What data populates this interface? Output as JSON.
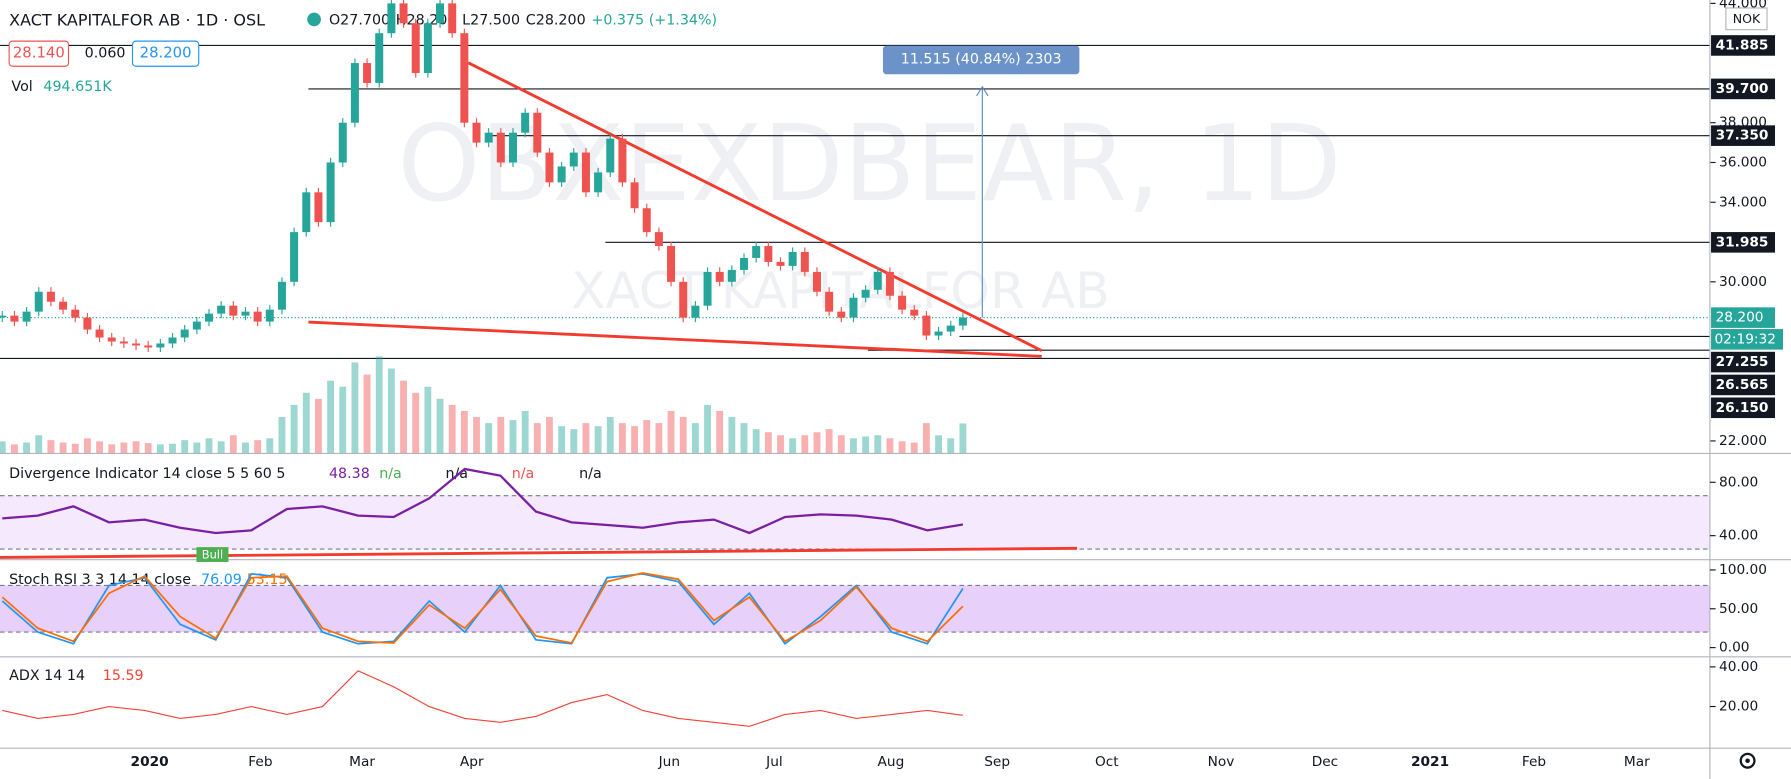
{
  "header": {
    "symbol": "XACT KAPITALFOR AB · 1D · OSL",
    "open": "O27.700",
    "high": "H28.200",
    "low": "L27.500",
    "close": "C28.200",
    "change": "+0.375 (+1.34%)",
    "bid": "28.140",
    "spread": "0.060",
    "ask": "28.200",
    "volume_label": "Vol",
    "volume": "494.651K"
  },
  "watermark": {
    "line1": "OBXEXDBEAR, 1D",
    "line2": "XACT KAPITALFOR AB"
  },
  "currency": "NOK",
  "countdown": "02:19:32",
  "measure": "11.515 (40.84%) 2303",
  "chart_data": {
    "type": "candlestick",
    "closes": [
      28.3,
      28.0,
      28.5,
      29.5,
      29.0,
      28.6,
      28.2,
      27.6,
      27.2,
      27.0,
      26.9,
      26.8,
      26.7,
      26.9,
      27.2,
      27.6,
      28.0,
      28.4,
      28.8,
      28.3,
      28.5,
      28.0,
      28.6,
      30.0,
      32.5,
      34.5,
      33.0,
      36.0,
      38.0,
      41.0,
      40.0,
      42.5,
      44.0,
      43.0,
      40.5,
      43.0,
      44.0,
      42.5,
      38.0,
      37.0,
      37.5,
      36.0,
      37.5,
      38.5,
      36.5,
      35.0,
      35.8,
      36.5,
      34.5,
      35.5,
      37.2,
      35.0,
      33.7,
      32.5,
      31.8,
      30.0,
      28.2,
      28.8,
      30.5,
      30.0,
      30.6,
      31.2,
      31.8,
      31.0,
      30.8,
      31.5,
      30.5,
      29.5,
      28.5,
      28.2,
      29.2,
      29.6,
      30.5,
      29.3,
      28.6,
      28.3,
      27.3,
      27.5,
      27.8,
      28.2
    ],
    "volumes": [
      200,
      150,
      180,
      300,
      220,
      180,
      160,
      250,
      200,
      150,
      180,
      200,
      170,
      150,
      160,
      220,
      180,
      250,
      200,
      300,
      180,
      220,
      250,
      600,
      800,
      1000,
      900,
      1200,
      1100,
      1500,
      1300,
      1600,
      1400,
      1200,
      1000,
      1100,
      900,
      800,
      700,
      600,
      500,
      600,
      550,
      700,
      500,
      600,
      450,
      400,
      500,
      450,
      600,
      500,
      450,
      550,
      500,
      700,
      600,
      500,
      800,
      700,
      600,
      500,
      400,
      350,
      300,
      250,
      300,
      350,
      400,
      300,
      250,
      280,
      300,
      250,
      200,
      180,
      500,
      300,
      250,
      494.651
    ],
    "up_color": "#26a69a",
    "down_color": "#ef5350",
    "ylim": [
      21.37,
      44.17
    ],
    "yticks": [
      {
        "value": 22,
        "label": "22.000"
      },
      {
        "value": 30,
        "label": "30.000"
      },
      {
        "value": 34,
        "label": "34.000"
      },
      {
        "value": 36,
        "label": "36.000"
      },
      {
        "value": 38,
        "label": "38.000"
      },
      {
        "value": 44,
        "label": "44.000"
      }
    ],
    "levels": [
      {
        "value": 41.885,
        "label": "41.885"
      },
      {
        "value": 39.7,
        "label": "39.700"
      },
      {
        "value": 37.35,
        "label": "37.350"
      },
      {
        "value": 31.985,
        "label": "31.985"
      },
      {
        "value": 27.255,
        "label": "27.255"
      },
      {
        "value": 26.565,
        "label": "26.565"
      },
      {
        "value": 26.15,
        "label": "26.150"
      }
    ],
    "current_price": {
      "value": 28.2,
      "label": "28.200"
    },
    "xticks": [
      "2020",
      "Feb",
      "Mar",
      "Apr",
      "Jun",
      "Jul",
      "Aug",
      "Sep",
      "Oct",
      "Nov",
      "Dec",
      "2021",
      "Feb",
      "Mar"
    ],
    "divergence": {
      "title": "Divergence Indicator 14 close 5 5 60 5",
      "value_label": "48.38",
      "na": [
        "n/a",
        "n/a",
        "n/a",
        "n/a"
      ],
      "bull": "Bull",
      "color": "#7b1fa2",
      "values": [
        53,
        55,
        62,
        50,
        52,
        46,
        42,
        44,
        60,
        62,
        55,
        54,
        68,
        90,
        85,
        58,
        50,
        48,
        46,
        50,
        52,
        42,
        54,
        56,
        55,
        52,
        44,
        48.38
      ],
      "ylim": [
        22,
        101.6
      ],
      "band": [
        30,
        70
      ],
      "yticks": [
        {
          "value": 40,
          "label": "40.00"
        },
        {
          "value": 80,
          "label": "80.00"
        }
      ]
    },
    "stoch": {
      "title": "Stoch RSI 3 3 14 14 close",
      "k_label": "76.09",
      "d_label": "53.15",
      "k_color": "#2196f3",
      "d_color": "#ff6d00",
      "k": [
        60,
        20,
        5,
        80,
        90,
        30,
        10,
        95,
        90,
        20,
        5,
        8,
        60,
        20,
        80,
        10,
        5,
        90,
        95,
        85,
        30,
        70,
        5,
        40,
        80,
        20,
        5,
        76.09
      ],
      "d": [
        65,
        25,
        8,
        70,
        92,
        40,
        12,
        90,
        92,
        25,
        8,
        6,
        55,
        25,
        75,
        15,
        6,
        85,
        96,
        88,
        35,
        65,
        8,
        35,
        78,
        25,
        8,
        53.15
      ],
      "ylim": [
        -11.8,
        113.2
      ],
      "band": [
        20,
        80
      ],
      "yticks": [
        {
          "value": 0,
          "label": "0.00"
        },
        {
          "value": 50,
          "label": "50.00"
        },
        {
          "value": 100,
          "label": "100.00"
        }
      ]
    },
    "adx": {
      "title": "ADX 14 14",
      "value_label": "15.59",
      "color": "#f44336",
      "values": [
        18,
        14,
        16,
        20,
        18,
        14,
        16,
        20,
        16,
        20,
        38,
        30,
        20,
        14,
        12,
        15,
        22,
        26,
        18,
        14,
        12,
        10,
        16,
        18,
        14,
        16,
        18,
        15.59
      ],
      "ylim": [
        -1,
        45.1
      ],
      "yticks": [
        {
          "value": 20,
          "label": "20.00"
        },
        {
          "value": 40,
          "label": "40.00"
        }
      ]
    }
  }
}
